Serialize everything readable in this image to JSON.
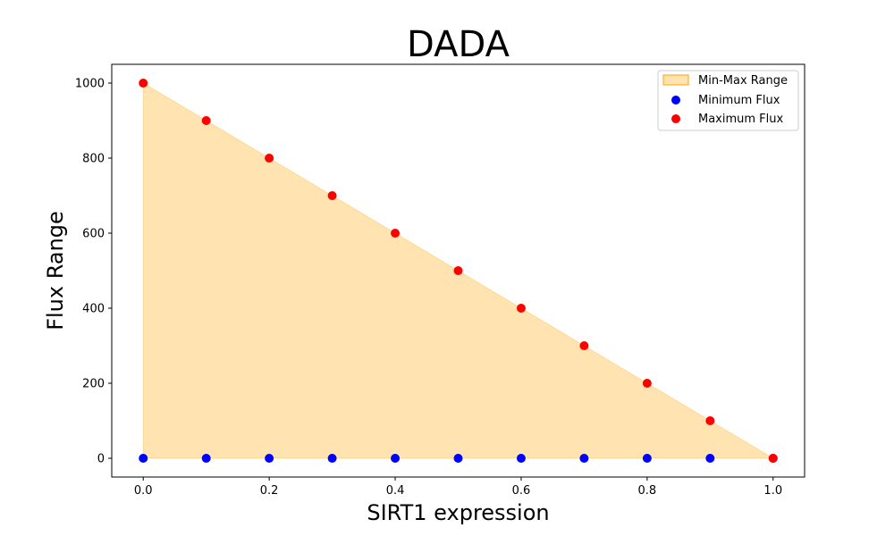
{
  "chart_data": {
    "type": "scatter",
    "title": "DADA",
    "xlabel": "SIRT1 expression",
    "ylabel": "Flux Range",
    "xlim": [
      -0.05,
      1.05
    ],
    "ylim": [
      -50,
      1050
    ],
    "x_ticks": [
      0.0,
      0.2,
      0.4,
      0.6,
      0.8,
      1.0
    ],
    "x_tick_labels": [
      "0.0",
      "0.2",
      "0.4",
      "0.6",
      "0.8",
      "1.0"
    ],
    "y_ticks": [
      0,
      200,
      400,
      600,
      800,
      1000
    ],
    "y_tick_labels": [
      "0",
      "200",
      "400",
      "600",
      "800",
      "1000"
    ],
    "grid": false,
    "legend_position": "top-right",
    "x": [
      0.0,
      0.1,
      0.2,
      0.3,
      0.4,
      0.5,
      0.6,
      0.7,
      0.8,
      0.9,
      1.0
    ],
    "series": [
      {
        "name": "Min-Max Range",
        "kind": "fill_between",
        "color": "#ffa500"
      },
      {
        "name": "Minimum Flux",
        "kind": "scatter",
        "color": "#0000ff",
        "values": [
          0,
          0,
          0,
          0,
          0,
          0,
          0,
          0,
          0,
          0,
          0
        ]
      },
      {
        "name": "Maximum Flux",
        "kind": "scatter",
        "color": "#ff0000",
        "values": [
          1000,
          900,
          800,
          700,
          600,
          500,
          400,
          300,
          200,
          100,
          0
        ]
      }
    ]
  }
}
